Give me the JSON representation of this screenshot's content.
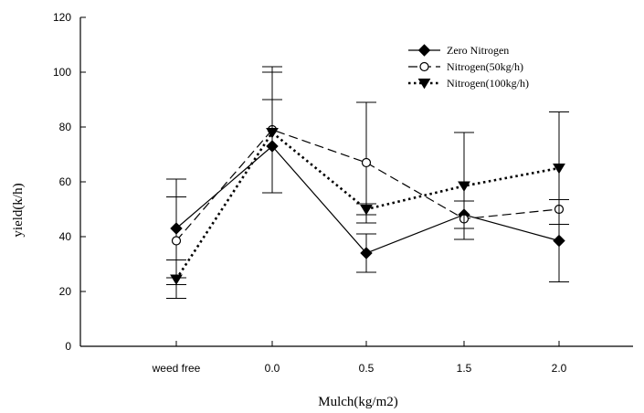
{
  "chart_data": {
    "type": "line",
    "categories": [
      "weed free",
      "0.0",
      "0.5",
      "1.5",
      "2.0"
    ],
    "xlabel": "Mulch(kg/m2)",
    "ylabel": "yield(k/h)",
    "ylim": [
      0,
      120
    ],
    "yticks": [
      0,
      20,
      40,
      60,
      80,
      100,
      120
    ],
    "grid": false,
    "legend_position": "top-right",
    "series": [
      {
        "name": "Zero Nitrogen",
        "marker": "diamond-filled",
        "line_style": "solid",
        "values": [
          43,
          73,
          34,
          48,
          38.5
        ],
        "error": [
          18,
          17,
          7,
          5,
          15
        ]
      },
      {
        "name": "Nitrogen(50kg/h)",
        "marker": "circle-open",
        "line_style": "dashed",
        "values": [
          38.5,
          79,
          67,
          46.5,
          50
        ],
        "error": [
          16,
          23,
          22,
          0,
          0
        ]
      },
      {
        "name": "Nitrogen(100kg/h)",
        "marker": "triangle-down-filled",
        "line_style": "dotted",
        "values": [
          24.5,
          78,
          50,
          58.5,
          65
        ],
        "error": [
          7,
          22,
          2,
          19.5,
          20.5
        ]
      }
    ]
  }
}
